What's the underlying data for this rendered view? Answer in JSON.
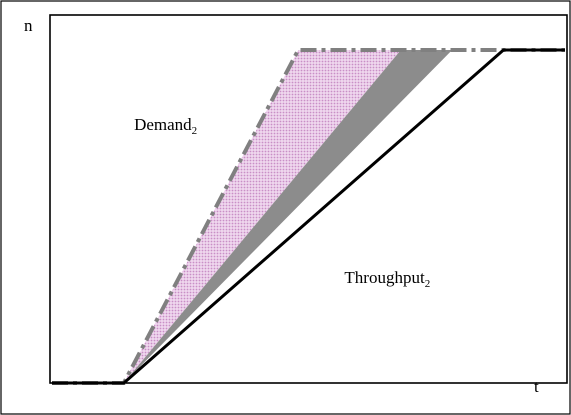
{
  "chart_data": {
    "type": "line",
    "title": "",
    "xlabel": "t",
    "ylabel": "n",
    "xlim": [
      0,
      100
    ],
    "ylim": [
      0,
      100
    ],
    "grid": false,
    "legend": "none",
    "series": [
      {
        "x": [
          0,
          14,
          48,
          100
        ],
        "y": [
          0,
          0,
          100,
          100
        ],
        "style": "dash-dot",
        "color": "#808080"
      },
      {
        "x": [
          0,
          14,
          88,
          100
        ],
        "y": [
          0,
          0,
          100,
          100
        ],
        "style": "solid",
        "color": "#000000"
      }
    ],
    "bands": [
      {
        "upper": {
          "x": [
            14,
            48
          ],
          "y": [
            0,
            100
          ]
        },
        "lower": {
          "x": [
            14,
            68
          ],
          "y": [
            0,
            100
          ]
        },
        "color": "#e2b8e0",
        "pattern": "dotted"
      },
      {
        "upper": {
          "x": [
            14,
            68
          ],
          "y": [
            0,
            100
          ]
        },
        "lower": {
          "x": [
            14,
            78
          ],
          "y": [
            0,
            100
          ]
        },
        "color": "#8c8c8c",
        "pattern": "solid"
      }
    ],
    "annotations": [
      {
        "text": "Demand",
        "sub": "2",
        "x": 16,
        "y": 76
      },
      {
        "text": "Throughput",
        "sub": "2",
        "x": 57,
        "y": 30
      }
    ]
  }
}
